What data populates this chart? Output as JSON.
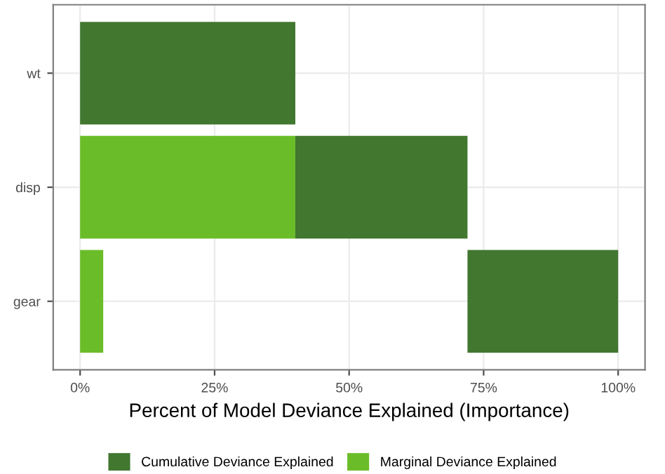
{
  "chart_data": {
    "type": "bar",
    "orientation": "horizontal",
    "xlabel": "Percent of Model Deviance Explained (Importance)",
    "categories": [
      "wt",
      "disp",
      "gear"
    ],
    "series": [
      {
        "name": "Cumulative Deviance Explained",
        "color": "#41772f",
        "base": [
          0,
          40,
          72
        ],
        "values": [
          40,
          32,
          28
        ]
      },
      {
        "name": "Marginal Deviance Explained",
        "color": "#6abd28",
        "values": [
          null,
          40,
          4.3
        ]
      }
    ],
    "xlim": [
      -5,
      105
    ],
    "xticks": [
      {
        "value": 0,
        "label": "0%"
      },
      {
        "value": 25,
        "label": "25%"
      },
      {
        "value": 50,
        "label": "50%"
      },
      {
        "value": 75,
        "label": "75%"
      },
      {
        "value": 100,
        "label": "100%"
      }
    ],
    "grid": true,
    "legend": "bottom"
  }
}
